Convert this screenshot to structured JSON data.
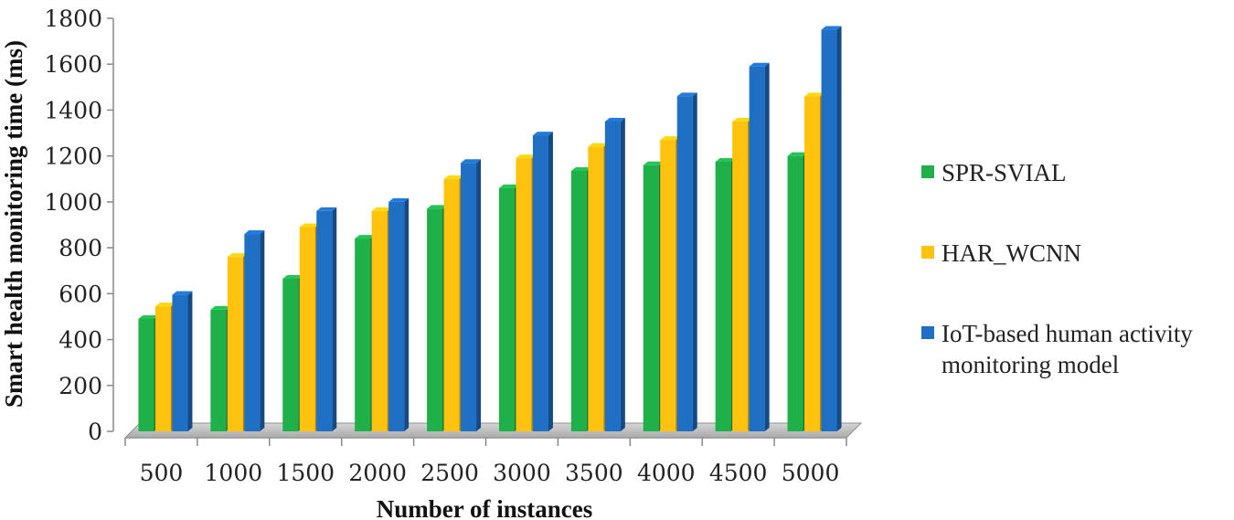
{
  "chart_data": {
    "type": "bar",
    "title": "",
    "xlabel": "Number of instances",
    "ylabel": "Smart health monitoring time (ms)",
    "ylim": [
      0,
      1800
    ],
    "yticks": [
      "0",
      "200",
      "400",
      "600",
      "800",
      "1000",
      "1200",
      "1400",
      "1600",
      "1800"
    ],
    "categories": [
      "500",
      "1000",
      "1500",
      "2000",
      "2500",
      "3000",
      "3500",
      "4000",
      "4500",
      "5000"
    ],
    "series": [
      {
        "name": "SPR-SVIAL",
        "color": "#1fb04a",
        "values": [
          490,
          530,
          665,
          840,
          970,
          1060,
          1135,
          1160,
          1175,
          1200
        ]
      },
      {
        "name": "HAR_WCNN",
        "color": "#ffc20e",
        "values": [
          545,
          760,
          890,
          960,
          1100,
          1190,
          1240,
          1270,
          1350,
          1460
        ]
      },
      {
        "name": "IoT-based human activity monitoring model",
        "legend_lines": [
          "IoT-based human activity",
          "monitoring model"
        ],
        "color": "#1f6fc4",
        "values": [
          595,
          860,
          960,
          1000,
          1170,
          1290,
          1350,
          1460,
          1590,
          1750
        ]
      }
    ],
    "grid": false,
    "legend_position": "right"
  }
}
